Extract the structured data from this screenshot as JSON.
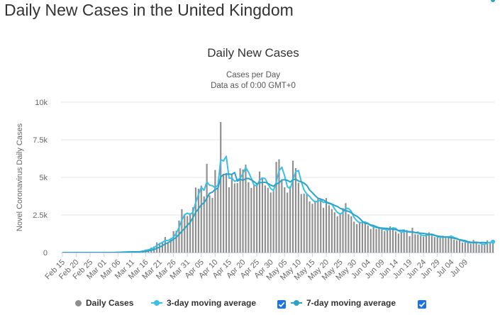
{
  "page": {
    "title": "Daily New Cases in the United Kingdom"
  },
  "colors": {
    "bars": "#8e8e8e",
    "ma3": "#3cbfe6",
    "ma7": "#2aa3c8",
    "grid": "#e6e6e6",
    "axis": "#ccd6eb",
    "checkbox": "#1a73e8"
  },
  "legend": {
    "daily": "Daily Cases",
    "ma3": "3-day moving average",
    "ma7": "7-day moving average",
    "ma3_checked": true,
    "ma7_checked": true
  },
  "chart_data": {
    "type": "bar",
    "title": "Daily New Cases",
    "subtitle": "Cases per Day",
    "subtitle2": "Data as of 0:00 GMT+0",
    "xlabel": "",
    "ylabel": "Novel Coronavirus Daily Cases",
    "ylim": [
      0,
      10000
    ],
    "yticks": [
      0,
      2500,
      5000,
      7500,
      10000
    ],
    "ytick_labels": [
      "0",
      "2.5k",
      "5k",
      "7.5k",
      "10k"
    ],
    "grid": true,
    "legend_position": "bottom",
    "x_start_date": "2020-02-15",
    "xtick_labels": [
      "Feb 15",
      "Feb 20",
      "Feb 25",
      "Mar 01",
      "Mar 06",
      "Mar 11",
      "Mar 16",
      "Mar 21",
      "Mar 26",
      "Mar 31",
      "Apr 05",
      "Apr 10",
      "Apr 15",
      "Apr 20",
      "Apr 25",
      "Apr 30",
      "May 05",
      "May 10",
      "May 15",
      "May 20",
      "May 25",
      "May 30",
      "Jun 04",
      "Jun 09",
      "Jun 14",
      "Jun 19",
      "Jun 24",
      "Jun 29",
      "Jul 04",
      "Jul 09"
    ],
    "series": [
      {
        "name": "Daily Cases",
        "values": [
          0,
          0,
          0,
          0,
          0,
          0,
          0,
          0,
          0,
          0,
          0,
          1,
          0,
          1,
          3,
          0,
          4,
          3,
          12,
          11,
          34,
          30,
          48,
          43,
          67,
          48,
          46,
          50,
          80,
          150,
          208,
          208,
          342,
          407,
          676,
          643,
          714,
          1035,
          665,
          967,
          1427,
          1452,
          2129,
          2885,
          2546,
          2433,
          2619,
          3009,
          4324,
          4244,
          4450,
          3735,
          5903,
          3802,
          3634,
          5491,
          4344,
          8681,
          5233,
          5288,
          4342,
          5252,
          4603,
          4617,
          5599,
          5525,
          5850,
          4676,
          4301,
          4451,
          4583,
          5386,
          4913,
          4463,
          4309,
          3996,
          4076,
          6032,
          6201,
          4806,
          4339,
          3985,
          4406,
          6111,
          5614,
          4649,
          3896,
          3923,
          3877,
          3403,
          3242,
          3446,
          3560,
          3450,
          2978,
          3625,
          3142,
          2889,
          2684,
          2412,
          2615,
          2959,
          3287,
          2553,
          2405,
          2053,
          1887,
          2034,
          2061,
          2004,
          1806,
          1570,
          1805,
          1557,
          1650,
          1541,
          1425,
          1514,
          1741,
          1676,
          1408,
          1266,
          1387,
          1541,
          1425,
          1089,
          1653,
          1218,
          1205,
          1115,
          1056,
          1221,
          1346,
          1115,
          1035,
          1019,
          958,
          1118,
          1012,
          1002,
          1144,
          866,
          814,
          830,
          670,
          689,
          648,
          581,
          837,
          646,
          540,
          516,
          576,
          812,
          659,
          686
        ],
        "labels": {}
      },
      {
        "name": "3-day moving average",
        "values": [
          0,
          0,
          0,
          0,
          0,
          0,
          0,
          0,
          0,
          0,
          0,
          0,
          0,
          1,
          1,
          1,
          2,
          2,
          6,
          9,
          19,
          25,
          37,
          40,
          53,
          53,
          54,
          48,
          59,
          93,
          146,
          189,
          253,
          319,
          475,
          575,
          678,
          798,
          805,
          889,
          1020,
          1282,
          1669,
          2155,
          2520,
          2621,
          2533,
          2687,
          3317,
          3859,
          4339,
          4143,
          4696,
          4480,
          4446,
          4309,
          4490,
          6172,
          6086,
          6401,
          4954,
          4961,
          4732,
          4824,
          4940,
          5247,
          5658,
          5350,
          4942,
          4476,
          4445,
          4807,
          4961,
          4921,
          4562,
          4256,
          4127,
          4701,
          5436,
          5680,
          5115,
          4377,
          4243,
          4834,
          5377,
          5458,
          4720,
          4156,
          3899,
          3734,
          3507,
          3364,
          3416,
          3485,
          3329,
          3351,
          3248,
          3219,
          2905,
          2662,
          2570,
          2662,
          2954,
          2933,
          2748,
          2337,
          2115,
          1991,
          1994,
          2033,
          1957,
          1793,
          1727,
          1644,
          1671,
          1583,
          1539,
          1493,
          1560,
          1644,
          1608,
          1450,
          1354,
          1398,
          1451,
          1352,
          1389,
          1320,
          1359,
          1179,
          1125,
          1131,
          1208,
          1227,
          1165,
          1056,
          1004,
          1032,
          1029,
          1044,
          1086,
          1004,
          941,
          837,
          771,
          736,
          669,
          639,
          689,
          688,
          674,
          567,
          544,
          643,
          682,
          719
        ],
        "labels": {}
      },
      {
        "name": "7-day moving average",
        "values": [
          0,
          0,
          0,
          0,
          0,
          0,
          0,
          0,
          0,
          0,
          0,
          0,
          0,
          0,
          1,
          1,
          1,
          2,
          3,
          5,
          10,
          14,
          20,
          26,
          35,
          40,
          45,
          46,
          52,
          65,
          85,
          114,
          153,
          200,
          284,
          360,
          457,
          573,
          658,
          766,
          881,
          1012,
          1198,
          1420,
          1605,
          1818,
          2000,
          2328,
          2681,
          2915,
          3175,
          3315,
          3620,
          3944,
          4013,
          4201,
          4267,
          5026,
          5187,
          5205,
          5225,
          5193,
          5329,
          4747,
          4879,
          4797,
          4919,
          4927,
          4834,
          4714,
          4565,
          4652,
          4657,
          4676,
          4602,
          4490,
          4409,
          4560,
          4636,
          4827,
          4843,
          4807,
          4693,
          4839,
          4883,
          4755,
          4706,
          4614,
          4468,
          4160,
          3978,
          3782,
          3612,
          3553,
          3494,
          3365,
          3292,
          3226,
          3135,
          3065,
          2946,
          2864,
          2788,
          2741,
          2644,
          2512,
          2415,
          2272,
          2077,
          1944,
          1907,
          1835,
          1798,
          1720,
          1648,
          1631,
          1617,
          1603,
          1574,
          1554,
          1523,
          1468,
          1482,
          1471,
          1386,
          1389,
          1370,
          1331,
          1305,
          1293,
          1275,
          1243,
          1208,
          1179,
          1138,
          1101,
          1072,
          1050,
          1046,
          1022,
          982,
          949,
          907,
          857,
          829,
          792,
          723,
          693,
          662,
          659,
          650,
          680,
          662,
          664
        ],
        "labels": {}
      }
    ]
  }
}
